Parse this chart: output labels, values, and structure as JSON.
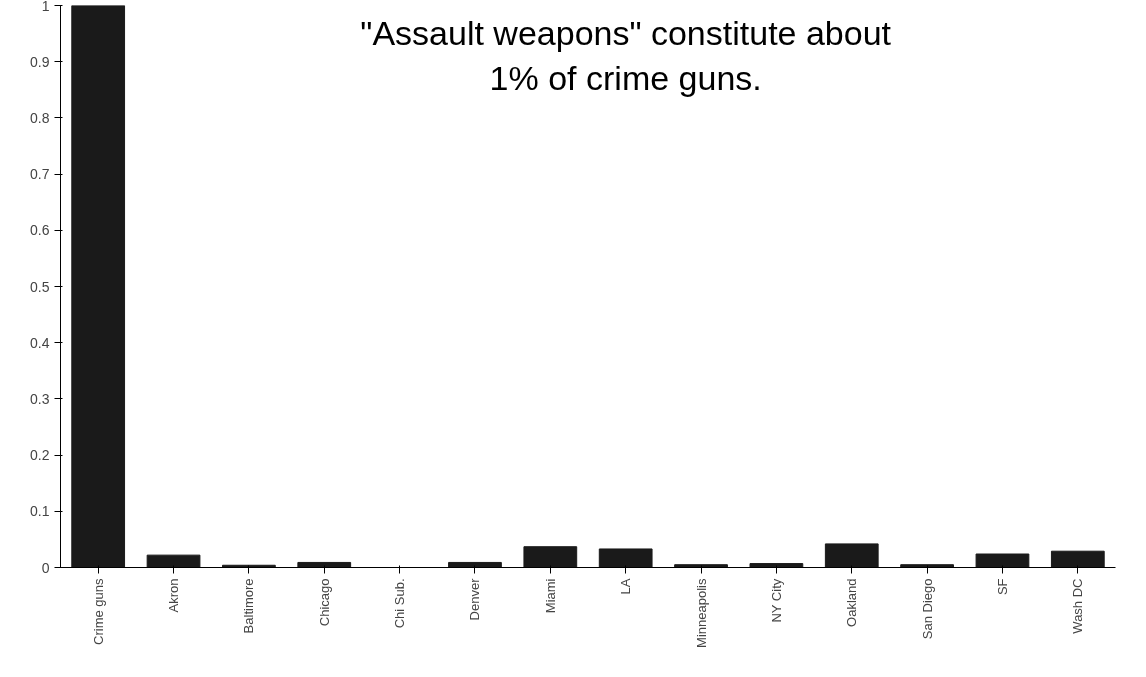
{
  "chart_data": {
    "type": "bar",
    "title": "\"Assault weapons\" constitute about\n1% of crime guns.",
    "categories": [
      "Crime guns",
      "Akron",
      "Baltimore",
      "Chicago",
      "Chi Sub.",
      "Denver",
      "Miami",
      "LA",
      "Minneapolis",
      "NY City",
      "Oakland",
      "San Diego",
      "SF",
      "Wash DC"
    ],
    "values": [
      1,
      0.022,
      0.004,
      0.009,
      0,
      0.009,
      0.037,
      0.033,
      0.005,
      0.007,
      0.042,
      0.005,
      0.024,
      0.029
    ],
    "color": "#1a1a1a",
    "ylim": [
      0,
      1
    ],
    "yticks": [
      0,
      0.1,
      0.2,
      0.3,
      0.4,
      0.5,
      0.6,
      0.7,
      0.8,
      0.9,
      1
    ],
    "grid": false
  }
}
